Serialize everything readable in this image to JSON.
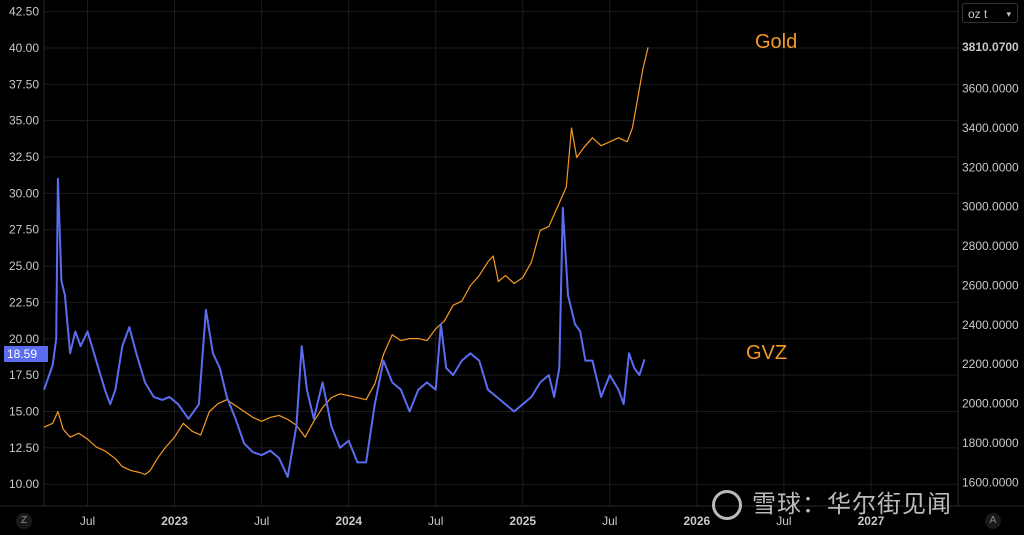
{
  "chart_data": {
    "type": "line",
    "left_axis": {
      "ticks": [
        "42.50",
        "40.00",
        "37.50",
        "35.00",
        "32.50",
        "30.00",
        "27.50",
        "25.00",
        "22.50",
        "20.00",
        "17.50",
        "15.00",
        "12.50",
        "10.00"
      ],
      "range": [
        8.5,
        43.3
      ],
      "current_value": "18.59"
    },
    "right_axis": {
      "unit": "oz t",
      "ticks": [
        "3810.0700",
        "3600.0000",
        "3400.0000",
        "3200.0000",
        "3000.0000",
        "2800.0000",
        "2600.0000",
        "2400.0000",
        "2200.0000",
        "2000.0000",
        "1800.0000",
        "1600.0000"
      ],
      "highlight": "3810.0700",
      "range": [
        1480,
        4050
      ]
    },
    "x_axis": {
      "range": [
        2022.25,
        2027.5
      ],
      "ticks": [
        {
          "label": "Jul",
          "value": 2022.5
        },
        {
          "label": "2023",
          "value": 2023.0
        },
        {
          "label": "Jul",
          "value": 2023.5
        },
        {
          "label": "2024",
          "value": 2024.0
        },
        {
          "label": "Jul",
          "value": 2024.5
        },
        {
          "label": "2025",
          "value": 2025.0
        },
        {
          "label": "Jul",
          "value": 2025.5
        },
        {
          "label": "2026",
          "value": 2026.0
        },
        {
          "label": "Jul",
          "value": 2026.5
        },
        {
          "label": "2027",
          "value": 2027.0
        }
      ]
    },
    "series": [
      {
        "name": "Gold",
        "axis": "right",
        "color": "#f59a23",
        "points": [
          [
            2022.25,
            1880
          ],
          [
            2022.3,
            1900
          ],
          [
            2022.33,
            1960
          ],
          [
            2022.36,
            1870
          ],
          [
            2022.4,
            1830
          ],
          [
            2022.45,
            1850
          ],
          [
            2022.5,
            1820
          ],
          [
            2022.55,
            1780
          ],
          [
            2022.6,
            1760
          ],
          [
            2022.66,
            1720
          ],
          [
            2022.7,
            1680
          ],
          [
            2022.75,
            1660
          ],
          [
            2022.8,
            1650
          ],
          [
            2022.83,
            1640
          ],
          [
            2022.86,
            1660
          ],
          [
            2022.9,
            1720
          ],
          [
            2022.95,
            1780
          ],
          [
            2023.0,
            1830
          ],
          [
            2023.05,
            1900
          ],
          [
            2023.1,
            1860
          ],
          [
            2023.15,
            1840
          ],
          [
            2023.2,
            1960
          ],
          [
            2023.25,
            2000
          ],
          [
            2023.3,
            2020
          ],
          [
            2023.35,
            1990
          ],
          [
            2023.4,
            1960
          ],
          [
            2023.45,
            1930
          ],
          [
            2023.5,
            1910
          ],
          [
            2023.55,
            1930
          ],
          [
            2023.6,
            1940
          ],
          [
            2023.65,
            1920
          ],
          [
            2023.7,
            1890
          ],
          [
            2023.75,
            1830
          ],
          [
            2023.8,
            1910
          ],
          [
            2023.85,
            1980
          ],
          [
            2023.9,
            2030
          ],
          [
            2023.95,
            2050
          ],
          [
            2024.0,
            2040
          ],
          [
            2024.05,
            2030
          ],
          [
            2024.1,
            2020
          ],
          [
            2024.15,
            2100
          ],
          [
            2024.2,
            2250
          ],
          [
            2024.25,
            2350
          ],
          [
            2024.3,
            2320
          ],
          [
            2024.35,
            2330
          ],
          [
            2024.4,
            2330
          ],
          [
            2024.45,
            2320
          ],
          [
            2024.5,
            2380
          ],
          [
            2024.55,
            2420
          ],
          [
            2024.6,
            2500
          ],
          [
            2024.65,
            2520
          ],
          [
            2024.7,
            2600
          ],
          [
            2024.75,
            2650
          ],
          [
            2024.8,
            2720
          ],
          [
            2024.83,
            2750
          ],
          [
            2024.86,
            2620
          ],
          [
            2024.9,
            2650
          ],
          [
            2024.95,
            2610
          ],
          [
            2025.0,
            2640
          ],
          [
            2025.05,
            2720
          ],
          [
            2025.1,
            2880
          ],
          [
            2025.15,
            2900
          ],
          [
            2025.2,
            3000
          ],
          [
            2025.25,
            3100
          ],
          [
            2025.28,
            3400
          ],
          [
            2025.31,
            3250
          ],
          [
            2025.35,
            3300
          ],
          [
            2025.4,
            3350
          ],
          [
            2025.45,
            3310
          ],
          [
            2025.5,
            3330
          ],
          [
            2025.55,
            3350
          ],
          [
            2025.6,
            3330
          ],
          [
            2025.63,
            3400
          ],
          [
            2025.66,
            3550
          ],
          [
            2025.69,
            3700
          ],
          [
            2025.72,
            3810
          ]
        ]
      },
      {
        "name": "GVZ",
        "axis": "left",
        "color": "#5b6cf0",
        "points": [
          [
            2022.25,
            16.5
          ],
          [
            2022.28,
            17.5
          ],
          [
            2022.3,
            18.2
          ],
          [
            2022.32,
            20.0
          ],
          [
            2022.33,
            31.0
          ],
          [
            2022.35,
            24.0
          ],
          [
            2022.37,
            23.0
          ],
          [
            2022.4,
            19.0
          ],
          [
            2022.43,
            20.5
          ],
          [
            2022.46,
            19.5
          ],
          [
            2022.5,
            20.5
          ],
          [
            2022.55,
            18.5
          ],
          [
            2022.6,
            16.5
          ],
          [
            2022.63,
            15.5
          ],
          [
            2022.66,
            16.5
          ],
          [
            2022.7,
            19.5
          ],
          [
            2022.74,
            20.8
          ],
          [
            2022.78,
            19.0
          ],
          [
            2022.83,
            17.0
          ],
          [
            2022.88,
            16.0
          ],
          [
            2022.93,
            15.8
          ],
          [
            2022.97,
            16.0
          ],
          [
            2023.02,
            15.5
          ],
          [
            2023.08,
            14.5
          ],
          [
            2023.14,
            15.5
          ],
          [
            2023.18,
            22.0
          ],
          [
            2023.22,
            19.0
          ],
          [
            2023.26,
            18.0
          ],
          [
            2023.3,
            16.0
          ],
          [
            2023.35,
            14.5
          ],
          [
            2023.4,
            12.8
          ],
          [
            2023.45,
            12.2
          ],
          [
            2023.5,
            12.0
          ],
          [
            2023.55,
            12.3
          ],
          [
            2023.6,
            11.8
          ],
          [
            2023.65,
            10.5
          ],
          [
            2023.7,
            14.0
          ],
          [
            2023.73,
            19.5
          ],
          [
            2023.76,
            16.5
          ],
          [
            2023.8,
            14.5
          ],
          [
            2023.85,
            17.0
          ],
          [
            2023.9,
            14.0
          ],
          [
            2023.95,
            12.5
          ],
          [
            2024.0,
            13.0
          ],
          [
            2024.05,
            11.5
          ],
          [
            2024.1,
            11.5
          ],
          [
            2024.15,
            15.5
          ],
          [
            2024.2,
            18.5
          ],
          [
            2024.25,
            17.0
          ],
          [
            2024.3,
            16.5
          ],
          [
            2024.35,
            15.0
          ],
          [
            2024.4,
            16.5
          ],
          [
            2024.45,
            17.0
          ],
          [
            2024.5,
            16.5
          ],
          [
            2024.53,
            21.0
          ],
          [
            2024.56,
            18.0
          ],
          [
            2024.6,
            17.5
          ],
          [
            2024.65,
            18.5
          ],
          [
            2024.7,
            19.0
          ],
          [
            2024.75,
            18.5
          ],
          [
            2024.8,
            16.5
          ],
          [
            2024.85,
            16.0
          ],
          [
            2024.9,
            15.5
          ],
          [
            2024.95,
            15.0
          ],
          [
            2025.0,
            15.5
          ],
          [
            2025.05,
            16.0
          ],
          [
            2025.1,
            17.0
          ],
          [
            2025.15,
            17.5
          ],
          [
            2025.18,
            16.0
          ],
          [
            2025.21,
            18.0
          ],
          [
            2025.23,
            29.0
          ],
          [
            2025.26,
            23.0
          ],
          [
            2025.3,
            21.0
          ],
          [
            2025.33,
            20.5
          ],
          [
            2025.36,
            18.5
          ],
          [
            2025.4,
            18.5
          ],
          [
            2025.45,
            16.0
          ],
          [
            2025.5,
            17.5
          ],
          [
            2025.55,
            16.5
          ],
          [
            2025.58,
            15.5
          ],
          [
            2025.61,
            19.0
          ],
          [
            2025.64,
            18.0
          ],
          [
            2025.67,
            17.5
          ],
          [
            2025.7,
            18.59
          ]
        ]
      }
    ],
    "labels": {
      "gold": "Gold",
      "gvz": "GVZ"
    }
  },
  "ui": {
    "watermark": "雪球：华尔街见闻",
    "corner_left": "Z",
    "corner_right": "A"
  }
}
